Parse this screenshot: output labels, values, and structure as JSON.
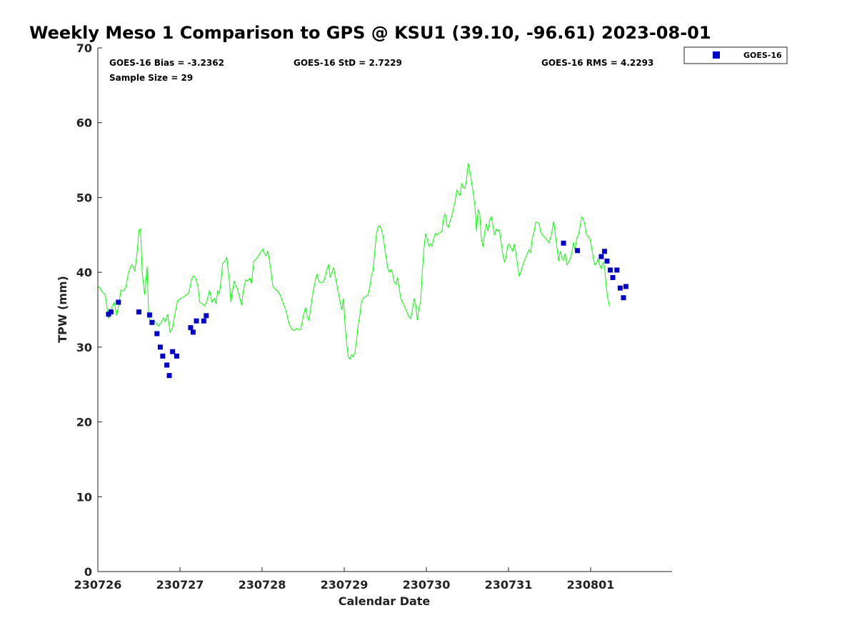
{
  "chart_data": {
    "type": "line",
    "title": "Weekly Meso 1 Comparison to GPS @ KSU1 (39.10, -96.61) 2023-08-01",
    "xlabel": "Calendar Date",
    "ylabel": "TPW (mm)",
    "xlim": [
      230726,
      230802
    ],
    "ylim": [
      0,
      70
    ],
    "x_tick_labels": [
      "230726",
      "230727",
      "230728",
      "230729",
      "230730",
      "230731",
      "230801"
    ],
    "y_ticks": [
      0,
      10,
      20,
      30,
      40,
      50,
      60,
      70
    ],
    "grid": false,
    "legend_position": "top-right, outside plot",
    "stats": {
      "bias": "GOES-16 Bias = -3.2362",
      "std": "GOES-16 StD = 2.7229",
      "rms": "GOES-16 RMS = 4.2293",
      "sample": "Sample Size = 29"
    },
    "series": [
      {
        "type": "line",
        "color": "#00ff00",
        "values": [
          [
            0.0,
            38.2
          ],
          [
            0.03,
            37.8
          ],
          [
            0.06,
            37.3
          ],
          [
            0.09,
            37.0
          ],
          [
            0.11,
            35.5
          ],
          [
            0.13,
            33.8
          ],
          [
            0.15,
            34.8
          ],
          [
            0.17,
            35.3
          ],
          [
            0.2,
            36.0
          ],
          [
            0.23,
            34.2
          ],
          [
            0.26,
            36.0
          ],
          [
            0.28,
            37.6
          ],
          [
            0.31,
            37.5
          ],
          [
            0.34,
            38.0
          ],
          [
            0.37,
            39.8
          ],
          [
            0.4,
            40.8
          ],
          [
            0.42,
            41.0
          ],
          [
            0.45,
            40.2
          ],
          [
            0.48,
            42.8
          ],
          [
            0.5,
            45.6
          ],
          [
            0.52,
            45.8
          ],
          [
            0.54,
            40.0
          ],
          [
            0.57,
            37.0
          ],
          [
            0.6,
            40.8
          ],
          [
            0.62,
            34.0
          ],
          [
            0.65,
            33.4
          ],
          [
            0.68,
            33.6
          ],
          [
            0.71,
            33.2
          ],
          [
            0.74,
            32.8
          ],
          [
            0.77,
            33.3
          ],
          [
            0.8,
            33.9
          ],
          [
            0.82,
            33.4
          ],
          [
            0.85,
            34.4
          ],
          [
            0.88,
            32.0
          ],
          [
            0.91,
            32.6
          ],
          [
            0.94,
            34.5
          ],
          [
            0.97,
            36.2
          ],
          [
            1.0,
            36.4
          ],
          [
            1.04,
            36.7
          ],
          [
            1.08,
            37.0
          ],
          [
            1.11,
            37.3
          ],
          [
            1.14,
            39.0
          ],
          [
            1.16,
            39.5
          ],
          [
            1.19,
            39.2
          ],
          [
            1.22,
            38.0
          ],
          [
            1.24,
            36.0
          ],
          [
            1.27,
            35.8
          ],
          [
            1.3,
            35.5
          ],
          [
            1.33,
            36.2
          ],
          [
            1.36,
            37.6
          ],
          [
            1.39,
            36.0
          ],
          [
            1.42,
            36.5
          ],
          [
            1.44,
            35.8
          ],
          [
            1.46,
            37.5
          ],
          [
            1.48,
            37.2
          ],
          [
            1.5,
            38.8
          ],
          [
            1.52,
            41.2
          ],
          [
            1.55,
            41.5
          ],
          [
            1.57,
            42.0
          ],
          [
            1.6,
            39.0
          ],
          [
            1.62,
            36.0
          ],
          [
            1.64,
            37.5
          ],
          [
            1.66,
            38.8
          ],
          [
            1.68,
            38.2
          ],
          [
            1.7,
            37.8
          ],
          [
            1.73,
            36.5
          ],
          [
            1.75,
            35.6
          ],
          [
            1.77,
            37.5
          ],
          [
            1.8,
            39.0
          ],
          [
            1.82,
            38.8
          ],
          [
            1.85,
            39.2
          ],
          [
            1.87,
            38.5
          ],
          [
            1.9,
            41.5
          ],
          [
            1.93,
            41.8
          ],
          [
            1.96,
            42.3
          ],
          [
            1.99,
            42.8
          ],
          [
            2.01,
            43.1
          ],
          [
            2.03,
            42.5
          ],
          [
            2.05,
            42.2
          ],
          [
            2.07,
            42.8
          ],
          [
            2.09,
            41.5
          ],
          [
            2.11,
            40.0
          ],
          [
            2.13,
            38.2
          ],
          [
            2.16,
            37.7
          ],
          [
            2.19,
            37.5
          ],
          [
            2.22,
            37.0
          ],
          [
            2.25,
            36.0
          ],
          [
            2.28,
            35.2
          ],
          [
            2.3,
            34.5
          ],
          [
            2.32,
            33.5
          ],
          [
            2.34,
            32.8
          ],
          [
            2.36,
            32.4
          ],
          [
            2.39,
            32.2
          ],
          [
            2.42,
            32.5
          ],
          [
            2.45,
            32.3
          ],
          [
            2.47,
            32.4
          ],
          [
            2.49,
            33.5
          ],
          [
            2.51,
            34.5
          ],
          [
            2.53,
            35.3
          ],
          [
            2.55,
            34.0
          ],
          [
            2.57,
            33.6
          ],
          [
            2.59,
            35.0
          ],
          [
            2.61,
            36.6
          ],
          [
            2.63,
            37.8
          ],
          [
            2.65,
            39.0
          ],
          [
            2.67,
            39.8
          ],
          [
            2.69,
            38.8
          ],
          [
            2.71,
            38.6
          ],
          [
            2.73,
            38.6
          ],
          [
            2.75,
            38.8
          ],
          [
            2.77,
            39.5
          ],
          [
            2.79,
            40.5
          ],
          [
            2.81,
            41.0
          ],
          [
            2.83,
            39.3
          ],
          [
            2.85,
            40.0
          ],
          [
            2.87,
            40.6
          ],
          [
            2.89,
            39.5
          ],
          [
            2.91,
            38.3
          ],
          [
            2.93,
            37.2
          ],
          [
            2.95,
            36.0
          ],
          [
            2.97,
            35.0
          ],
          [
            2.99,
            36.5
          ],
          [
            3.01,
            33.0
          ],
          [
            3.03,
            30.5
          ],
          [
            3.05,
            28.6
          ],
          [
            3.07,
            28.4
          ],
          [
            3.09,
            29.0
          ],
          [
            3.11,
            28.7
          ],
          [
            3.13,
            29.2
          ],
          [
            3.15,
            31.0
          ],
          [
            3.17,
            33.0
          ],
          [
            3.19,
            34.2
          ],
          [
            3.21,
            36.0
          ],
          [
            3.23,
            36.5
          ],
          [
            3.25,
            36.7
          ],
          [
            3.27,
            36.8
          ],
          [
            3.29,
            37.0
          ],
          [
            3.31,
            38.0
          ],
          [
            3.33,
            39.5
          ],
          [
            3.35,
            40.2
          ],
          [
            3.37,
            42.5
          ],
          [
            3.39,
            45.0
          ],
          [
            3.41,
            46.0
          ],
          [
            3.43,
            46.2
          ],
          [
            3.45,
            45.8
          ],
          [
            3.47,
            45.0
          ],
          [
            3.49,
            43.5
          ],
          [
            3.51,
            42.0
          ],
          [
            3.53,
            40.5
          ],
          [
            3.55,
            40.0
          ],
          [
            3.57,
            40.4
          ],
          [
            3.59,
            39.8
          ],
          [
            3.61,
            38.7
          ],
          [
            3.63,
            38.4
          ],
          [
            3.65,
            39.3
          ],
          [
            3.67,
            37.8
          ],
          [
            3.69,
            36.5
          ],
          [
            3.71,
            36.0
          ],
          [
            3.73,
            35.5
          ],
          [
            3.75,
            35.0
          ],
          [
            3.77,
            34.5
          ],
          [
            3.79,
            34.0
          ],
          [
            3.81,
            33.8
          ],
          [
            3.83,
            35.0
          ],
          [
            3.85,
            36.5
          ],
          [
            3.87,
            35.8
          ],
          [
            3.89,
            33.6
          ],
          [
            3.91,
            35.3
          ],
          [
            3.93,
            36.0
          ],
          [
            3.95,
            40.0
          ],
          [
            3.97,
            43.0
          ],
          [
            3.99,
            45.2
          ],
          [
            4.01,
            44.5
          ],
          [
            4.03,
            43.5
          ],
          [
            4.05,
            43.8
          ],
          [
            4.07,
            43.5
          ],
          [
            4.09,
            44.5
          ],
          [
            4.11,
            45.2
          ],
          [
            4.13,
            45.0
          ],
          [
            4.15,
            45.2
          ],
          [
            4.17,
            45.3
          ],
          [
            4.19,
            45.5
          ],
          [
            4.21,
            47.2
          ],
          [
            4.23,
            47.8
          ],
          [
            4.25,
            46.3
          ],
          [
            4.27,
            46.0
          ],
          [
            4.29,
            46.9
          ],
          [
            4.31,
            47.5
          ],
          [
            4.33,
            48.5
          ],
          [
            4.35,
            49.5
          ],
          [
            4.37,
            51.0
          ],
          [
            4.39,
            50.5
          ],
          [
            4.41,
            50.3
          ],
          [
            4.43,
            51.8
          ],
          [
            4.45,
            51.3
          ],
          [
            4.47,
            51.2
          ],
          [
            4.49,
            52.5
          ],
          [
            4.51,
            54.6
          ],
          [
            4.53,
            53.5
          ],
          [
            4.55,
            52.0
          ],
          [
            4.57,
            50.6
          ],
          [
            4.59,
            49.0
          ],
          [
            4.61,
            45.5
          ],
          [
            4.63,
            48.4
          ],
          [
            4.65,
            47.8
          ],
          [
            4.67,
            44.5
          ],
          [
            4.69,
            43.4
          ],
          [
            4.71,
            45.3
          ],
          [
            4.73,
            46.5
          ],
          [
            4.75,
            45.5
          ],
          [
            4.77,
            46.8
          ],
          [
            4.79,
            47.5
          ],
          [
            4.81,
            46.3
          ],
          [
            4.83,
            45.0
          ],
          [
            4.85,
            45.8
          ],
          [
            4.87,
            45.5
          ],
          [
            4.89,
            45.7
          ],
          [
            4.91,
            44.0
          ],
          [
            4.93,
            42.5
          ],
          [
            4.95,
            41.4
          ],
          [
            4.97,
            42.0
          ],
          [
            4.99,
            43.6
          ],
          [
            5.01,
            43.8
          ],
          [
            5.03,
            43.2
          ],
          [
            5.05,
            42.8
          ],
          [
            5.07,
            43.8
          ],
          [
            5.09,
            42.5
          ],
          [
            5.11,
            41.0
          ],
          [
            5.13,
            39.5
          ],
          [
            5.15,
            40.0
          ],
          [
            5.17,
            40.8
          ],
          [
            5.19,
            41.5
          ],
          [
            5.21,
            42.0
          ],
          [
            5.23,
            42.5
          ],
          [
            5.25,
            43.0
          ],
          [
            5.27,
            42.6
          ],
          [
            5.29,
            44.6
          ],
          [
            5.31,
            45.3
          ],
          [
            5.33,
            46.7
          ],
          [
            5.35,
            46.6
          ],
          [
            5.37,
            46.6
          ],
          [
            5.39,
            45.5
          ],
          [
            5.41,
            45.0
          ],
          [
            5.43,
            44.8
          ],
          [
            5.45,
            44.6
          ],
          [
            5.47,
            44.3
          ],
          [
            5.49,
            44.0
          ],
          [
            5.51,
            44.5
          ],
          [
            5.53,
            45.5
          ],
          [
            5.55,
            46.8
          ],
          [
            5.57,
            45.0
          ],
          [
            5.59,
            43.2
          ],
          [
            5.61,
            41.5
          ],
          [
            5.63,
            42.8
          ],
          [
            5.65,
            42.0
          ],
          [
            5.67,
            41.6
          ],
          [
            5.69,
            42.5
          ],
          [
            5.71,
            41.0
          ],
          [
            5.73,
            41.3
          ],
          [
            5.75,
            41.8
          ],
          [
            5.77,
            42.5
          ],
          [
            5.79,
            44.0
          ],
          [
            5.81,
            43.0
          ],
          [
            5.83,
            44.5
          ],
          [
            5.85,
            45.0
          ],
          [
            5.87,
            46.0
          ],
          [
            5.89,
            47.4
          ],
          [
            5.91,
            47.2
          ],
          [
            5.93,
            46.4
          ],
          [
            5.95,
            45.0
          ],
          [
            5.97,
            44.8
          ],
          [
            5.99,
            44.5
          ],
          [
            6.01,
            43.5
          ],
          [
            6.03,
            42.0
          ],
          [
            6.05,
            41.0
          ],
          [
            6.07,
            41.2
          ],
          [
            6.09,
            41.8
          ],
          [
            6.11,
            41.0
          ],
          [
            6.13,
            40.5
          ],
          [
            6.15,
            41.3
          ],
          [
            6.17,
            40.8
          ],
          [
            6.19,
            38.0
          ],
          [
            6.21,
            36.5
          ],
          [
            6.23,
            35.4
          ]
        ]
      },
      {
        "name": "GOES-16",
        "type": "scatter",
        "color": "#0000cc",
        "marker": "square",
        "values": [
          [
            0.13,
            34.4
          ],
          [
            0.16,
            34.7
          ],
          [
            0.25,
            36.0
          ],
          [
            0.5,
            34.7
          ],
          [
            0.63,
            34.3
          ],
          [
            0.66,
            33.3
          ],
          [
            0.72,
            31.8
          ],
          [
            0.76,
            30.0
          ],
          [
            0.79,
            28.8
          ],
          [
            0.84,
            27.6
          ],
          [
            0.87,
            26.2
          ],
          [
            0.91,
            29.4
          ],
          [
            0.96,
            28.8
          ],
          [
            1.13,
            32.6
          ],
          [
            1.16,
            32.0
          ],
          [
            1.2,
            33.5
          ],
          [
            1.29,
            33.5
          ],
          [
            1.32,
            34.2
          ],
          [
            5.67,
            43.9
          ],
          [
            5.84,
            42.9
          ],
          [
            6.13,
            42.1
          ],
          [
            6.17,
            42.8
          ],
          [
            6.2,
            41.5
          ],
          [
            6.24,
            40.3
          ],
          [
            6.27,
            39.3
          ],
          [
            6.32,
            40.3
          ],
          [
            6.36,
            37.9
          ],
          [
            6.4,
            36.6
          ],
          [
            6.43,
            38.1
          ]
        ]
      }
    ]
  }
}
